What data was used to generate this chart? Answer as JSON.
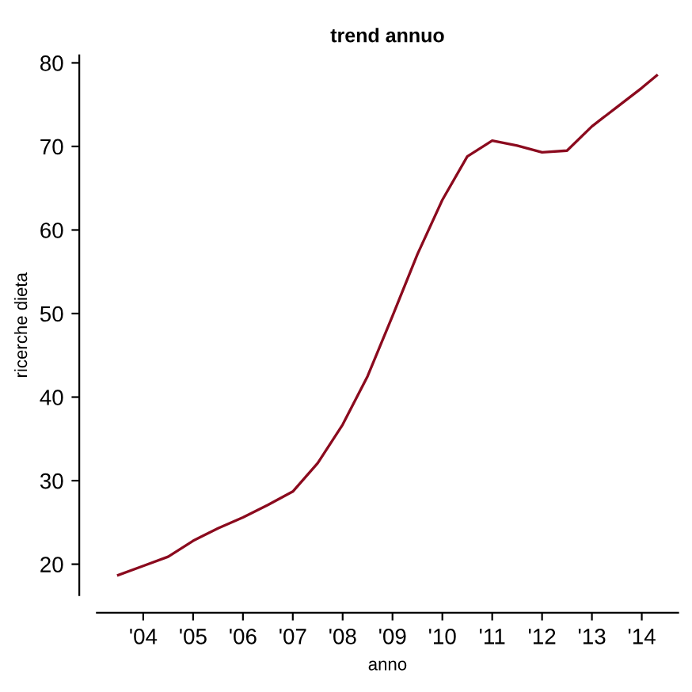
{
  "chart_data": {
    "type": "line",
    "title": "trend annuo",
    "xlabel": "anno",
    "ylabel": "ricerche dieta",
    "x": [
      2003.5,
      2004.0,
      2004.5,
      2005.0,
      2005.5,
      2006.0,
      2006.5,
      2007.0,
      2007.5,
      2008.0,
      2008.5,
      2009.0,
      2009.5,
      2010.0,
      2010.5,
      2011.0,
      2011.5,
      2012.0,
      2012.5,
      2013.0,
      2013.5,
      2014.0,
      2014.3
    ],
    "series": [
      {
        "color": "#8b0a1e",
        "values": [
          18.7,
          19.8,
          20.9,
          22.8,
          24.3,
          25.6,
          27.1,
          28.7,
          32.1,
          36.7,
          42.5,
          49.7,
          57.1,
          63.6,
          68.8,
          70.7,
          70.1,
          69.3,
          69.5,
          72.4,
          74.7,
          77.0,
          78.5
        ]
      }
    ],
    "xlim": [
      2003.07,
      2014.73
    ],
    "ylim": [
      16.3,
      80.9
    ],
    "xticks": [
      {
        "value": 2004,
        "label": "'04"
      },
      {
        "value": 2005,
        "label": "'05"
      },
      {
        "value": 2006,
        "label": "'06"
      },
      {
        "value": 2007,
        "label": "'07"
      },
      {
        "value": 2008,
        "label": "'08"
      },
      {
        "value": 2009,
        "label": "'09"
      },
      {
        "value": 2010,
        "label": "'10"
      },
      {
        "value": 2011,
        "label": "'11"
      },
      {
        "value": 2012,
        "label": "'12"
      },
      {
        "value": 2013,
        "label": "'13"
      },
      {
        "value": 2014,
        "label": "'14"
      }
    ],
    "yticks": [
      20,
      30,
      40,
      50,
      60,
      70,
      80
    ],
    "grid": false,
    "line_style": "solid"
  }
}
